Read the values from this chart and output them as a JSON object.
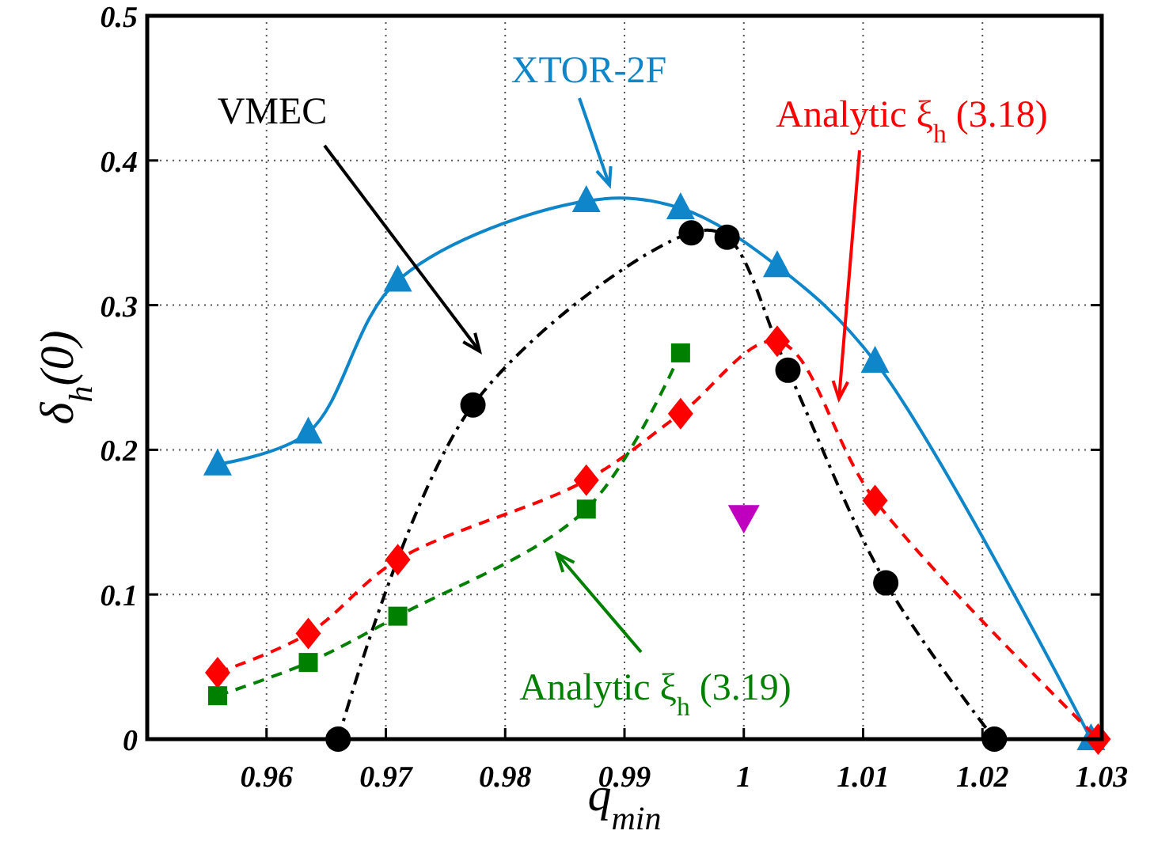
{
  "chart_data": {
    "type": "line",
    "xlabel": "q$_{min}$",
    "ylabel": "δ$_{h}$(0)",
    "xlim": [
      0.95,
      1.03
    ],
    "ylim": [
      0,
      0.5
    ],
    "xticks": [
      {
        "value": 0.95,
        "label": null
      },
      0.96,
      0.97,
      0.98,
      0.99,
      {
        "value": 1,
        "label": "1"
      },
      1.01,
      1.02,
      1.03
    ],
    "yticks": [
      {
        "value": 0,
        "label": "0"
      },
      0.1,
      0.2,
      0.3,
      0.4,
      0.5
    ],
    "grid": true,
    "series": [
      {
        "name": "XTOR-2F",
        "color": "#0e86c9",
        "marker": "triangle",
        "line_style": "solid",
        "x": [
          0.9559,
          0.9635,
          0.971,
          0.9868,
          0.9947,
          1.0028,
          1.011,
          1.0291
        ],
        "values": [
          0.19,
          0.212,
          0.317,
          0.372,
          0.367,
          0.327,
          0.261,
          0
        ]
      },
      {
        "name": "VMEC",
        "color": "#000000",
        "marker": "circle",
        "line_style": "dashdot",
        "x": [
          0.966,
          0.9773,
          0.9956,
          0.9986,
          1.0037,
          1.0119,
          1.021
        ],
        "values": [
          0,
          0.231,
          0.35,
          0.347,
          0.255,
          0.108,
          0
        ]
      },
      {
        "name": "Analytic ξ$_{h}$ (3.18)",
        "color": "#ff0000",
        "marker": "diamond",
        "line_style": "dashed",
        "x": [
          0.9559,
          0.9635,
          0.971,
          0.9868,
          0.9947,
          1.0028,
          1.011,
          1.0297
        ],
        "values": [
          0.046,
          0.073,
          0.124,
          0.179,
          0.225,
          0.275,
          0.165,
          0
        ]
      },
      {
        "name": "Analytic ξ$_{h}$ (3.19)",
        "color": "#008000",
        "marker": "square",
        "line_style": "dashed",
        "x": [
          0.9559,
          0.9635,
          0.971,
          0.9868,
          0.9947
        ],
        "values": [
          0.03,
          0.053,
          0.085,
          0.159,
          0.267
        ]
      },
      {
        "type": "scatter",
        "color": "#bf00bf",
        "marker": "triangle-down",
        "x": [
          1.0
        ],
        "values": [
          0.153
        ]
      }
    ]
  }
}
